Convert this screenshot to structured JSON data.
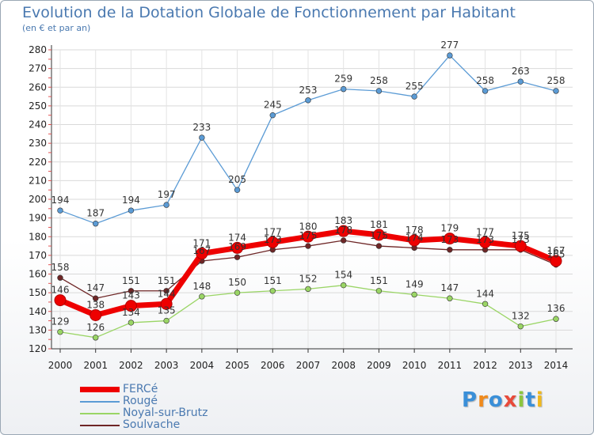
{
  "chart_data": {
    "type": "line",
    "title": "Evolution de la Dotation Globale de Fonctionnement par Habitant",
    "subtitle": "(en € et par an)",
    "xlabel": "",
    "ylabel": "",
    "ylim": [
      120,
      280
    ],
    "yticks": [
      120,
      130,
      140,
      150,
      160,
      170,
      180,
      190,
      200,
      210,
      220,
      230,
      240,
      250,
      260,
      270,
      280
    ],
    "categories": [
      "2000",
      "2001",
      "2002",
      "2003",
      "2004",
      "2005",
      "2006",
      "2007",
      "2008",
      "2009",
      "2010",
      "2011",
      "2012",
      "2013",
      "2014"
    ],
    "series": [
      {
        "name": "FERCé",
        "color": "#ee0000",
        "width": "thick",
        "values": [
          146,
          138,
          143,
          144,
          171,
          174,
          177,
          180,
          183,
          181,
          178,
          179,
          177,
          175,
          167
        ],
        "labels": [
          "146",
          "138",
          "143",
          "144",
          "171",
          "174",
          "177",
          "180",
          "183",
          "181",
          "178",
          "179",
          "177",
          "175",
          "167"
        ]
      },
      {
        "name": "Rougé",
        "color": "#5b9bd5",
        "width": "thin",
        "values": [
          194,
          187,
          194,
          197,
          233,
          205,
          245,
          253,
          259,
          258,
          255,
          277,
          258,
          263,
          258
        ],
        "labels": [
          "194",
          "187",
          "194",
          "197",
          "233",
          "205",
          "245",
          "253",
          "259",
          "258",
          "255",
          "277",
          "258",
          "263",
          "258"
        ]
      },
      {
        "name": "Noyal-sur-Brutz",
        "color": "#9ad565",
        "width": "thin",
        "values": [
          129,
          126,
          134,
          135,
          148,
          150,
          151,
          152,
          154,
          151,
          149,
          147,
          144,
          132,
          136
        ],
        "labels": [
          "129",
          "126",
          "134",
          "135",
          "148",
          "150",
          "151",
          "152",
          "154",
          "151",
          "149",
          "147",
          "144",
          "132",
          "136"
        ]
      },
      {
        "name": "Soulvache",
        "color": "#6e2626",
        "width": "thin",
        "values": [
          158,
          147,
          151,
          151,
          167,
          169,
          173,
          175,
          178,
          175,
          174,
          173,
          173,
          173,
          165
        ],
        "labels": [
          "158",
          "147",
          "151",
          "151",
          "167",
          "169",
          "173",
          "175",
          "178",
          "175",
          "174",
          "173",
          "173",
          "173",
          "165"
        ]
      }
    ],
    "legend_position": "bottom-left"
  },
  "logo": {
    "letters": [
      "P",
      "r",
      "o",
      "x",
      "i",
      "t",
      "i"
    ],
    "colors": [
      "#3a8fd8",
      "#f08a1c",
      "#3a8fd8",
      "#e84a3a",
      "#8cc63f",
      "#3a8fd8",
      "#f0b81c"
    ]
  }
}
